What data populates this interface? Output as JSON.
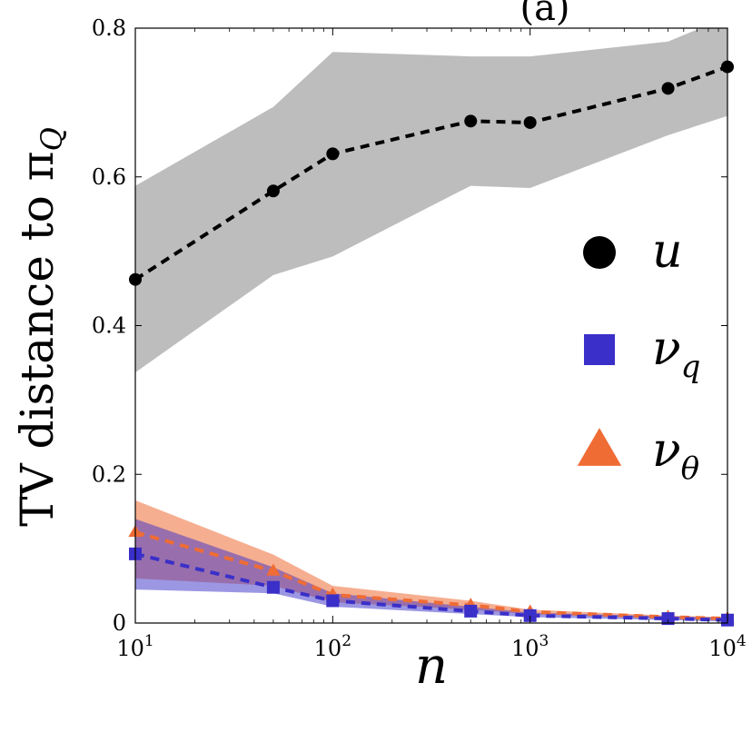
{
  "chart_data": {
    "type": "line",
    "title": "(a)",
    "xlabel": "n",
    "ylabel": "TV distance to π",
    "ylabel_subscript": "Q",
    "x_scale": "log",
    "xlim": [
      10,
      10000
    ],
    "ylim": [
      0,
      0.8
    ],
    "x_ticks": [
      {
        "value": 10,
        "base": "10",
        "exp": "1"
      },
      {
        "value": 100,
        "base": "10",
        "exp": "2"
      },
      {
        "value": 1000,
        "base": "10",
        "exp": "3"
      },
      {
        "value": 10000,
        "base": "10",
        "exp": "4"
      }
    ],
    "y_ticks": [
      {
        "value": 0,
        "label": "0"
      },
      {
        "value": 0.2,
        "label": "0.2"
      },
      {
        "value": 0.4,
        "label": "0.4"
      },
      {
        "value": 0.6,
        "label": "0.6"
      },
      {
        "value": 0.8,
        "label": "0.8"
      }
    ],
    "x": [
      10,
      50,
      100,
      500,
      1000,
      5000,
      10000
    ],
    "series": [
      {
        "name": "u",
        "subscript": "",
        "marker": "circle",
        "color": "#000000",
        "band_color": "#bdbdbd",
        "band_opacity": 1,
        "values": [
          0.462,
          0.581,
          0.631,
          0.675,
          0.673,
          0.719,
          0.748
        ],
        "lower": [
          0.337,
          0.468,
          0.493,
          0.588,
          0.585,
          0.656,
          0.682
        ],
        "upper": [
          0.588,
          0.694,
          0.768,
          0.762,
          0.762,
          0.782,
          0.815
        ]
      },
      {
        "name": "ν",
        "subscript": "q",
        "marker": "square",
        "color": "#3a2fc8",
        "band_color": "#3a2fc8",
        "band_opacity": 0.5,
        "values": [
          0.093,
          0.048,
          0.03,
          0.016,
          0.01,
          0.006,
          0.004
        ],
        "lower": [
          0.045,
          0.04,
          0.022,
          0.012,
          0.008,
          0.004,
          0.002
        ],
        "upper": [
          0.14,
          0.075,
          0.04,
          0.022,
          0.014,
          0.009,
          0.007
        ]
      },
      {
        "name": "ν",
        "subscript": "θ",
        "marker": "triangle",
        "color": "#ef6c35",
        "band_color": "#ef6c35",
        "band_opacity": 0.55,
        "values": [
          0.122,
          0.07,
          0.038,
          0.024,
          0.015,
          0.008,
          0.006
        ],
        "lower": [
          0.06,
          0.05,
          0.028,
          0.018,
          0.012,
          0.006,
          0.004
        ],
        "upper": [
          0.165,
          0.092,
          0.05,
          0.03,
          0.018,
          0.01,
          0.008
        ]
      }
    ],
    "legend_position": "right-middle"
  }
}
